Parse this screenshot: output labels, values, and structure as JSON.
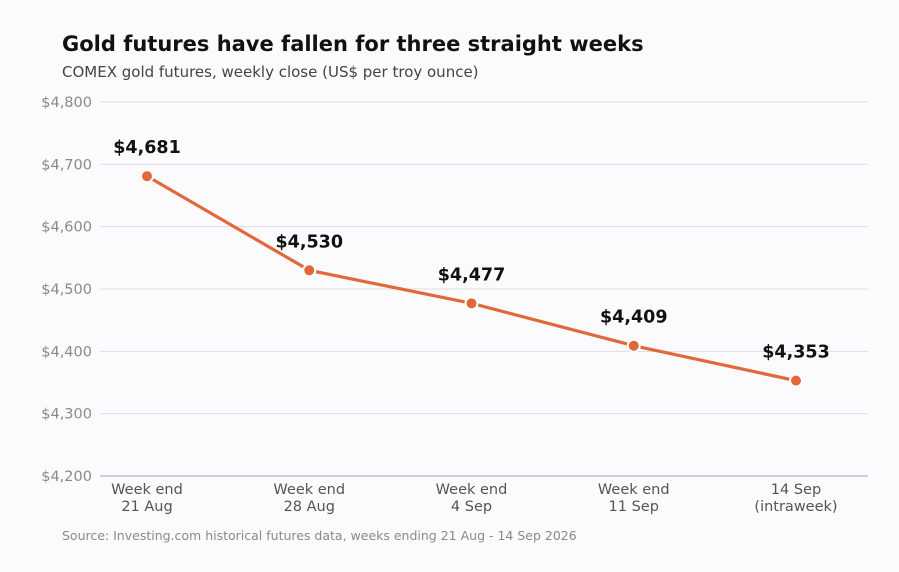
{
  "chart_data": {
    "type": "line",
    "title": "Gold futures have fallen for three straight weeks",
    "subtitle": "COMEX gold futures, weekly close (US$ per troy ounce)",
    "categories": [
      [
        "Week end",
        "21 Aug"
      ],
      [
        "Week end",
        "28 Aug"
      ],
      [
        "Week end",
        "4 Sep"
      ],
      [
        "Week end",
        "11 Sep"
      ],
      [
        "14 Sep",
        "(intraweek)"
      ]
    ],
    "values": [
      4681,
      4530,
      4477,
      4409,
      4353
    ],
    "data_labels": [
      "$4,681",
      "$4,530",
      "$4,477",
      "$4,409",
      "$4,353"
    ],
    "ylim": [
      4200,
      4800
    ],
    "yticks": [
      4200,
      4300,
      4400,
      4500,
      4600,
      4700,
      4800
    ],
    "ytick_labels": [
      "$4,200",
      "$4,300",
      "$4,400",
      "$4,500",
      "$4,600",
      "$4,700",
      "$4,800"
    ],
    "xlabel": "",
    "ylabel": "",
    "grid": true,
    "line_color": "#e0683a",
    "source": "Source: Investing.com historical futures data, weeks ending 21 Aug - 14 Sep 2026"
  }
}
